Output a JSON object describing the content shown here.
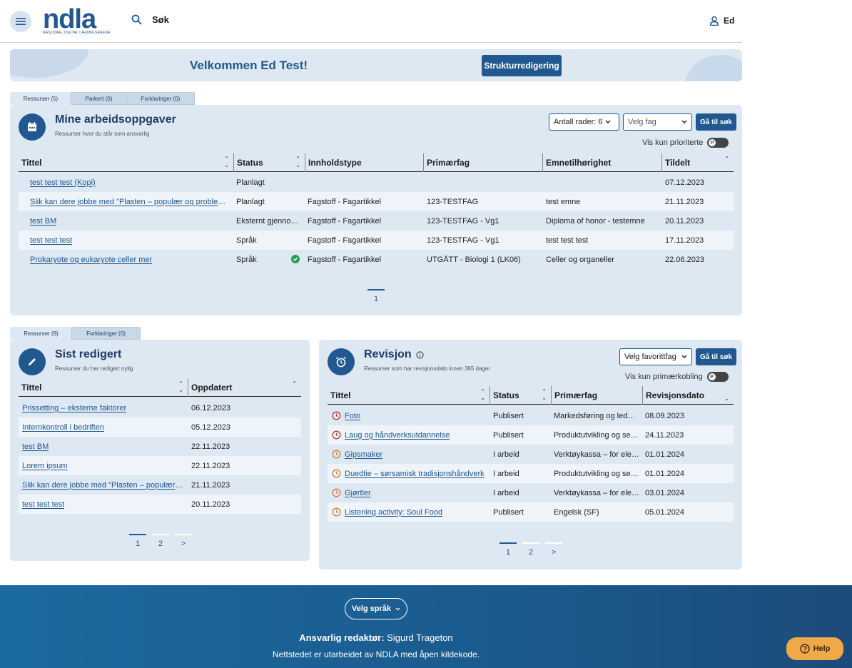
{
  "header": {
    "logo_text": "ndla",
    "logo_sub": "NASJONAL DIGITAL LÆRINGSARENA",
    "search_label": "Søk",
    "user_name": "Ed"
  },
  "welcome": {
    "title": "Velkommen Ed Test!",
    "struct_button": "Strukturredigering"
  },
  "tasks": {
    "tabs": [
      "Ressurser (5)",
      "Parkert (0)",
      "Forklaringer (0)"
    ],
    "title": "Mine arbeidsoppgaver",
    "subtitle": "Ressurser hvor du står som ansvarlig",
    "rows_select": "Antall rader: 6",
    "subject_select": "Velg fag",
    "go_button": "Gå til søk",
    "toggle_label": "Vis kun prioriterte",
    "columns": [
      "Tittel",
      "Status",
      "Innholdstype",
      "Primærfag",
      "Emnetilhørighet",
      "Tildelt"
    ],
    "rows": [
      {
        "title": "test test test (Kopi)",
        "status": "Planlagt",
        "type": "",
        "subject": "",
        "topic": "",
        "date": "07.12.2023"
      },
      {
        "title": "Slik kan dere jobbe med \"Plasten – populær og problematisk\"",
        "status": "Planlagt",
        "type": "Fagstoff - Fagartikkel",
        "subject": "123-TESTFAG",
        "topic": "test emne",
        "date": "21.11.2023"
      },
      {
        "title": "test BM",
        "status": "Eksternt gjennomsyn",
        "type": "Fagstoff - Fagartikkel",
        "subject": "123-TESTFAG - Vg1",
        "topic": "Diploma of honor - testemne",
        "date": "20.11.2023"
      },
      {
        "title": "test test test",
        "status": "Språk",
        "type": "Fagstoff - Fagartikkel",
        "subject": "123-TESTFAG - Vg1",
        "topic": "test test test",
        "date": "17.11.2023"
      },
      {
        "title": "Prokaryote og eukaryote celler mer",
        "status": "Språk",
        "type": "Fagstoff - Fagartikkel",
        "subject": "UTGÅTT - Biologi 1 (LK06)",
        "topic": "Celler og organeller",
        "date": "22.06.2023"
      }
    ],
    "pages": [
      "1"
    ]
  },
  "recent": {
    "tabs": [
      "Ressurser (9)",
      "Forklaringer (0)"
    ],
    "title": "Sist redigert",
    "subtitle": "Ressurser du har redigert nylig",
    "columns": [
      "Tittel",
      "Oppdatert"
    ],
    "rows": [
      {
        "title": "Prissetting – eksterne faktorer",
        "date": "06.12.2023"
      },
      {
        "title": "Internkontroll i bedriften",
        "date": "05.12.2023"
      },
      {
        "title": "test BM",
        "date": "22.11.2023"
      },
      {
        "title": "Lorem ipsum",
        "date": "22.11.2023"
      },
      {
        "title": "Slik kan dere jobbe med \"Plasten – populær og problematisk\"",
        "date": "21.11.2023"
      },
      {
        "title": "test test test",
        "date": "20.11.2023"
      }
    ],
    "pages": [
      "1",
      "2",
      ">"
    ]
  },
  "revision": {
    "title": "Revisjon",
    "subtitle": "Ressurser som har revisjonsdato innen 365 dager",
    "fav_select": "Velg favorittfag",
    "go_button": "Gå til søk",
    "toggle_label": "Vis kun primærkobling",
    "columns": [
      "Tittel",
      "Status",
      "Primærfag",
      "Revisjonsdato"
    ],
    "rows": [
      {
        "title": "Foto",
        "status": "Publisert",
        "subject": "Markedsføring og ledelse",
        "date": "08.09.2023",
        "icon_color": "#c0392b"
      },
      {
        "title": "Laug og håndverksutdannelse",
        "status": "Publisert",
        "subject": "Produktutvikling og service",
        "date": "24.11.2023",
        "icon_color": "#c0392b"
      },
      {
        "title": "Gipsmaker",
        "status": "I arbeid",
        "subject": "Verktøykassa – for elever",
        "date": "01.01.2024",
        "icon_color": "#d4793a"
      },
      {
        "title": "Duedtie – sørsamisk tradisjonshåndverk",
        "status": "I arbeid",
        "subject": "Produktutvikling og service",
        "date": "01.01.2024",
        "icon_color": "#d4793a"
      },
      {
        "title": "Gjørtler",
        "status": "I arbeid",
        "subject": "Verktøykassa – for elever",
        "date": "03.01.2024",
        "icon_color": "#d4793a"
      },
      {
        "title": "Listening activity: Soul Food",
        "status": "Publisert",
        "subject": "Engelsk (SF)",
        "date": "05.01.2024",
        "icon_color": "#d4793a"
      }
    ],
    "pages": [
      "1",
      "2",
      ">"
    ]
  },
  "footer": {
    "lang_button": "Velg språk",
    "editor_label": "Ansvarlig redaktør:",
    "editor_name": "Sigurd Trageton",
    "open_source": "Nettstedet er utarbeidet av NDLA med åpen kildekode.",
    "help": "Help"
  },
  "colors": {
    "brand": "#20588f",
    "panel": "#dde8f3",
    "help": "#f0a949"
  }
}
